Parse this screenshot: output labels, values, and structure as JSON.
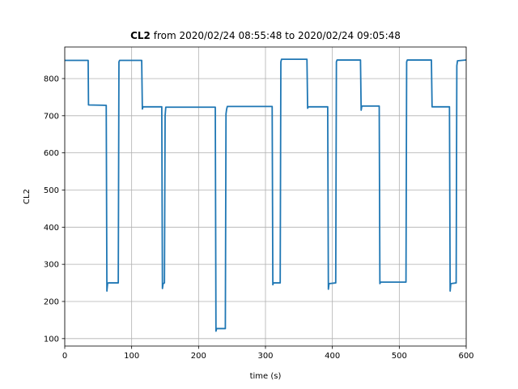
{
  "chart_data": {
    "type": "line",
    "title_bold": "CL2",
    "title_rest": " from 2020/02/24 08:55:48 to 2020/02/24 09:05:48",
    "xlabel": "time (s)",
    "ylabel": "CL2",
    "xlim": [
      0,
      600
    ],
    "ylim": [
      80,
      885
    ],
    "xticks": [
      0,
      100,
      200,
      300,
      400,
      500,
      600
    ],
    "yticks": [
      100,
      200,
      300,
      400,
      500,
      600,
      700,
      800
    ],
    "grid": true,
    "color": "#1f77b4",
    "series": [
      {
        "x": [
          0,
          35,
          35.5,
          62,
          63,
          64,
          65,
          80,
          81,
          82,
          115,
          116,
          117,
          145,
          146,
          147,
          149,
          150,
          151,
          225,
          226,
          227,
          240,
          241,
          242,
          243,
          310,
          311,
          312,
          322,
          323,
          324,
          362,
          363,
          364,
          393,
          394,
          395,
          405,
          406,
          407,
          442,
          443,
          444,
          470,
          471,
          472,
          510,
          511,
          512,
          548,
          549,
          550,
          575,
          576,
          577,
          585,
          586,
          587,
          600
        ],
        "y": [
          849,
          849,
          729,
          728,
          228,
          248,
          250,
          250,
          845,
          849,
          849,
          718,
          724,
          724,
          235,
          248,
          250,
          700,
          723,
          723,
          120,
          127,
          127,
          705,
          718,
          725,
          725,
          245,
          250,
          250,
          845,
          852,
          852,
          720,
          724,
          724,
          233,
          248,
          250,
          845,
          850,
          850,
          715,
          726,
          726,
          248,
          252,
          252,
          845,
          850,
          850,
          724,
          724,
          724,
          228,
          248,
          250,
          835,
          848,
          850
        ]
      }
    ]
  }
}
